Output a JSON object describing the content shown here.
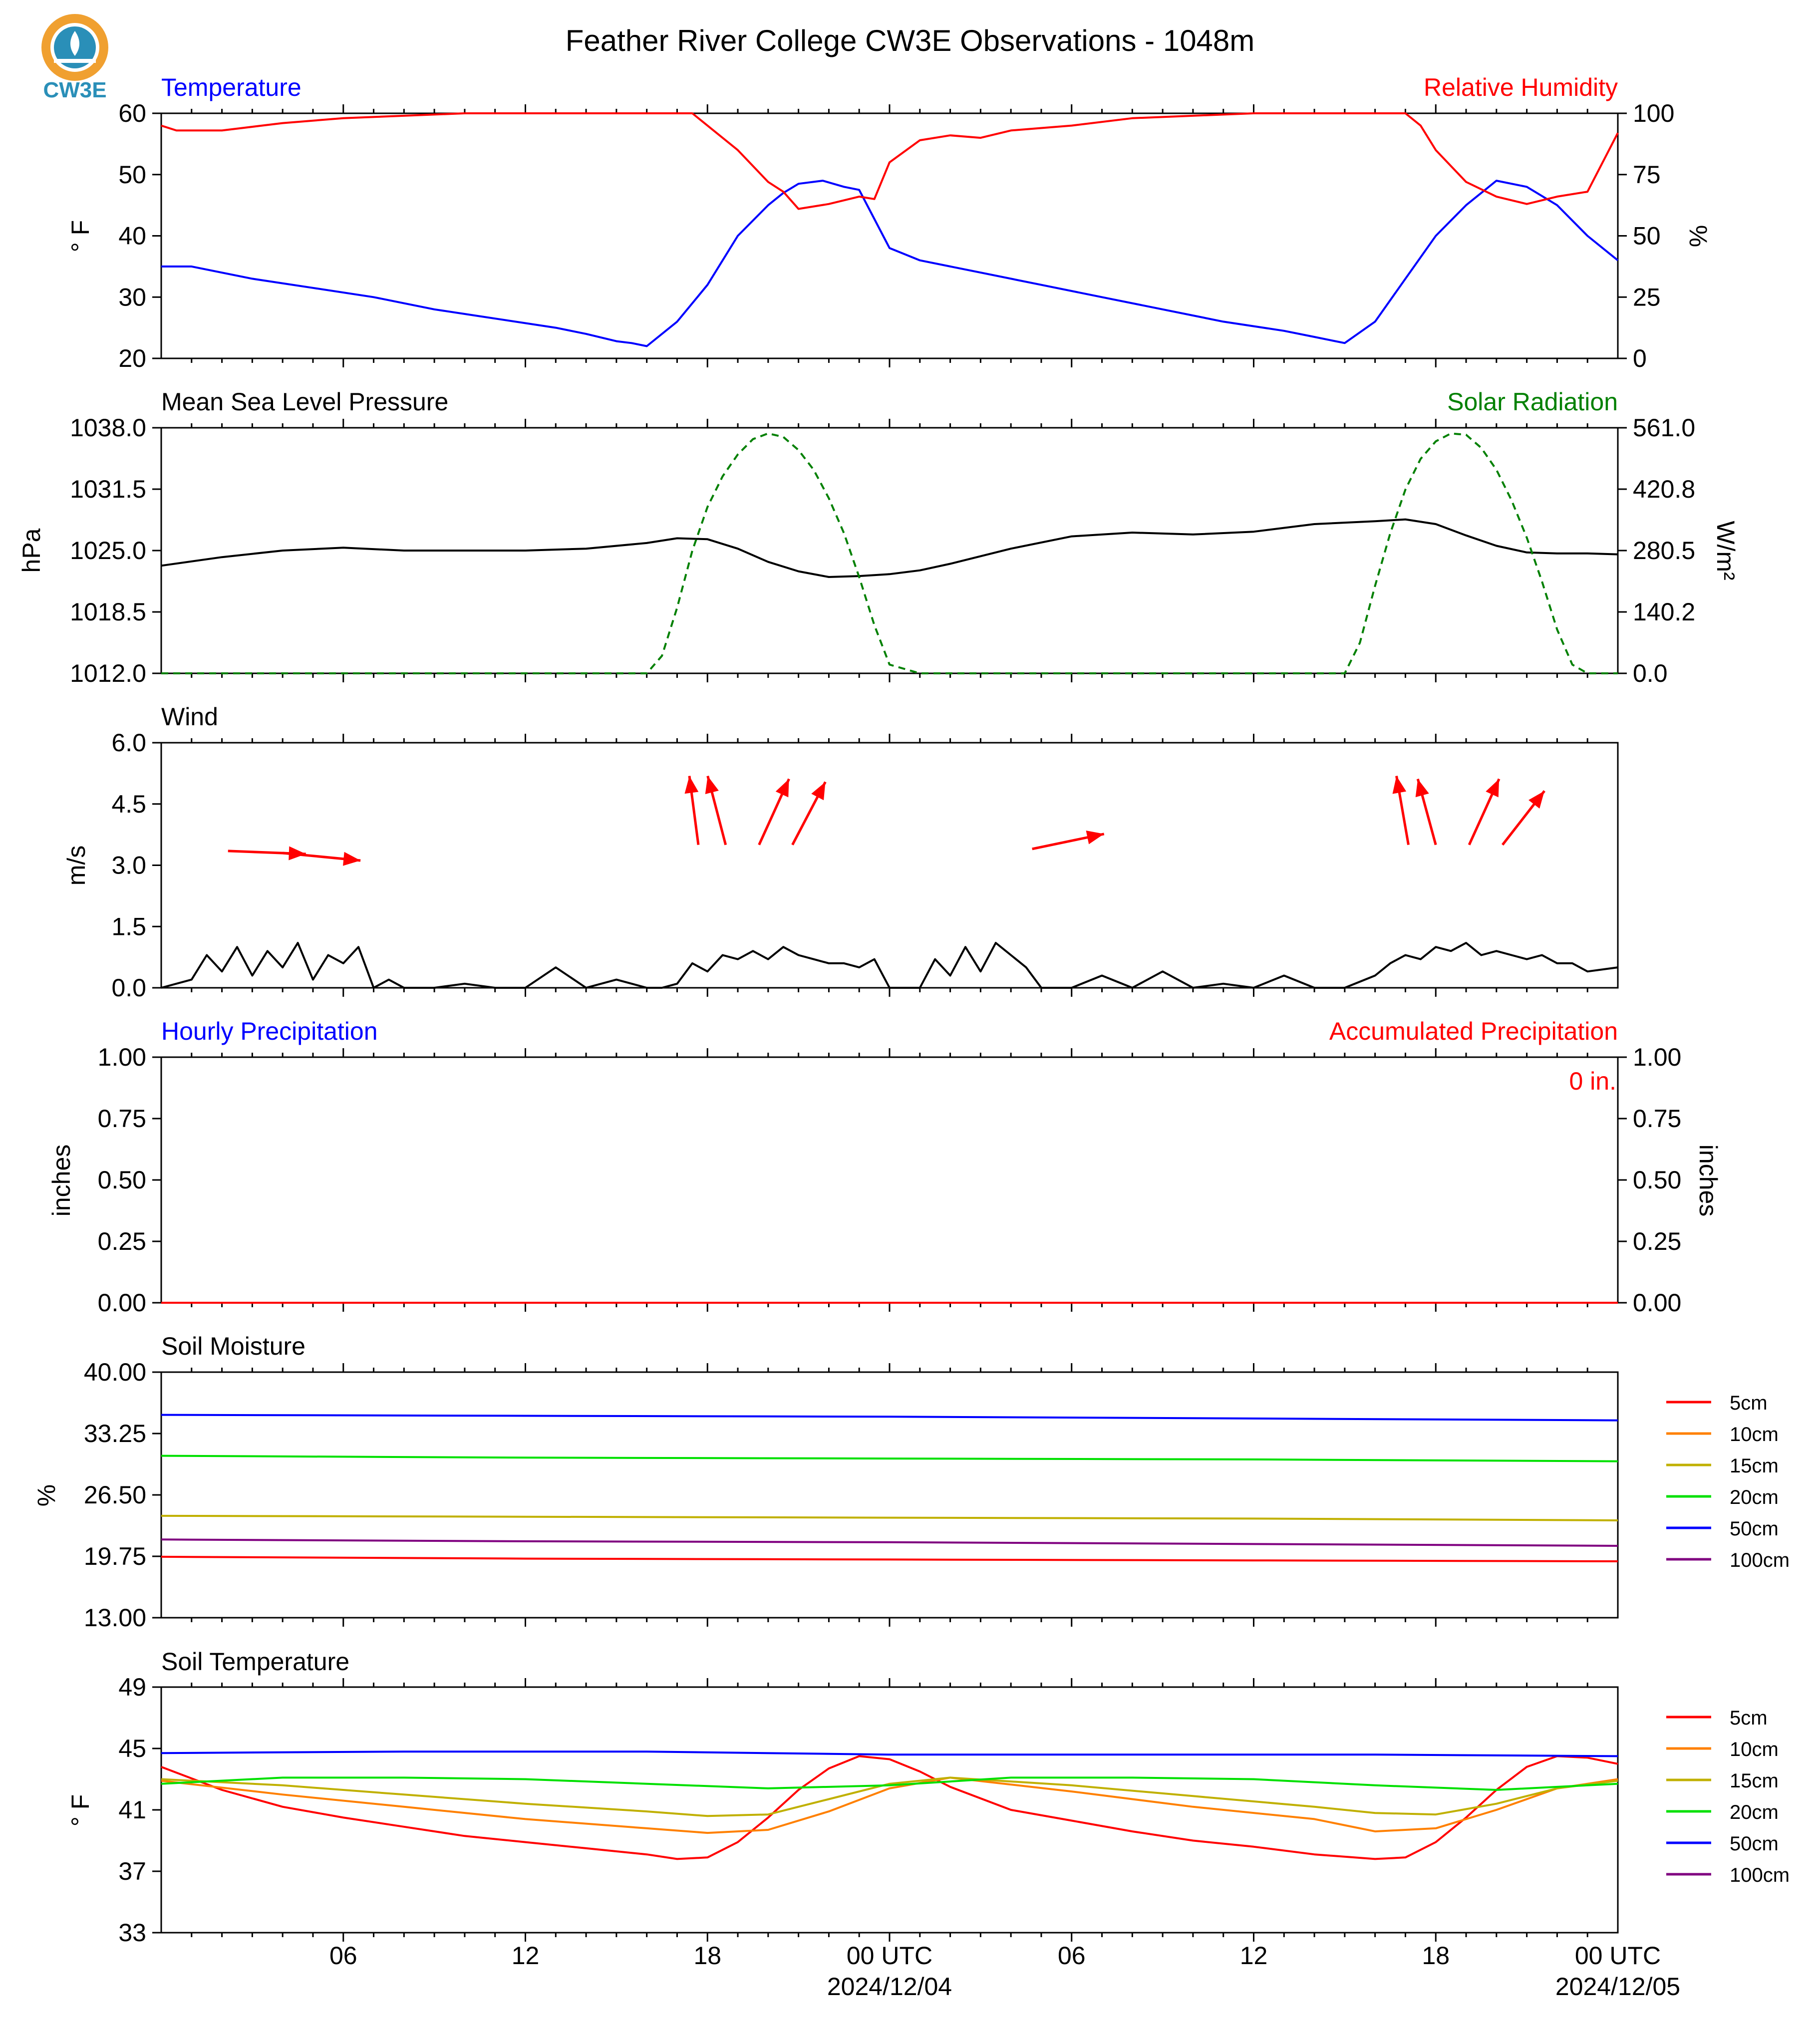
{
  "title": "Feather River College CW3E Observations - 1048m",
  "logo_text": "CW3E",
  "colors": {
    "temperature": "#0000ff",
    "humidity": "#ff0000",
    "pressure": "#000000",
    "solar": "#008000",
    "wind_arrow": "#ff0000",
    "wind_speed": "#000000",
    "logo_orange": "#f0a030",
    "logo_blue": "#2a8fb8"
  },
  "x_axis": {
    "ticks": [
      "06",
      "12",
      "18",
      "00 UTC",
      "06",
      "12",
      "18",
      "00 UTC"
    ],
    "dates": [
      "2024/12/04",
      "2024/12/05"
    ]
  },
  "chart_data": [
    {
      "type": "line",
      "title_left": "Temperature",
      "title_right": "Relative Humidity",
      "ylabel": "° F",
      "ylabel_right": "%",
      "ylim": [
        20,
        60
      ],
      "ylim_right": [
        0,
        100
      ],
      "yticks": [
        "60",
        "50",
        "40",
        "30",
        "20"
      ],
      "yticks_right": [
        "100",
        "75",
        "50",
        "25",
        "0"
      ],
      "x_unit": "hours",
      "xlim": [
        0,
        48
      ],
      "series": [
        {
          "name": "Temperature",
          "x": [
            0,
            1,
            3,
            5,
            7,
            9,
            11,
            13,
            14,
            15,
            15.5,
            16,
            17,
            18,
            19,
            20,
            20.5,
            21,
            21.8,
            22.5,
            23,
            24,
            25,
            27,
            29,
            31,
            33,
            35,
            37,
            38,
            38.5,
            39,
            40,
            41,
            42,
            43,
            43.5,
            44,
            45,
            46,
            47,
            48
          ],
          "y": [
            35,
            35,
            33,
            31.5,
            30,
            28,
            26.5,
            25,
            24,
            22.8,
            22.5,
            22,
            26,
            32,
            40,
            45,
            47,
            48.5,
            49,
            48,
            47.5,
            38,
            36,
            34,
            32,
            30,
            28,
            26,
            24.5,
            23.5,
            23,
            22.5,
            26,
            33,
            40,
            45,
            47,
            49,
            48,
            45,
            40,
            36
          ]
        },
        {
          "name": "Relative Humidity",
          "x": [
            0,
            0.5,
            2,
            4,
            6,
            8,
            10,
            12,
            14,
            16,
            17,
            17.5,
            18,
            19,
            20,
            20.5,
            21,
            22,
            23,
            23.5,
            24,
            25,
            26,
            27,
            28,
            30,
            32,
            34,
            36,
            38,
            40,
            41,
            41.5,
            42,
            43,
            44,
            45,
            46,
            47,
            48
          ],
          "y": [
            95,
            93,
            93,
            96,
            98,
            99,
            100,
            100,
            100,
            100,
            100,
            100,
            95,
            85,
            72,
            68,
            61,
            63,
            66,
            65,
            80,
            89,
            91,
            90,
            93,
            95,
            98,
            99,
            100,
            100,
            100,
            100,
            95,
            85,
            72,
            66,
            63,
            66,
            68,
            92
          ]
        }
      ]
    },
    {
      "type": "line",
      "title_left": "Mean Sea Level Pressure",
      "title_right": "Solar Radiation",
      "ylabel": "hPa",
      "ylabel_right": "W/m²",
      "ylim": [
        1012,
        1038
      ],
      "ylim_right": [
        0,
        561
      ],
      "yticks": [
        "1038.0",
        "1031.5",
        "1025.0",
        "1018.5",
        "1012.0"
      ],
      "yticks_right": [
        "561.0",
        "420.8",
        "280.5",
        "140.2",
        "0.0"
      ],
      "x_unit": "hours",
      "xlim": [
        0,
        48
      ],
      "series": [
        {
          "name": "Mean Sea Level Pressure",
          "x": [
            0,
            2,
            4,
            6,
            8,
            10,
            12,
            14,
            16,
            17,
            18,
            19,
            20,
            21,
            22,
            23,
            24,
            25,
            26,
            28,
            30,
            32,
            34,
            36,
            38,
            40,
            41,
            42,
            43,
            44,
            45,
            46,
            47,
            48
          ],
          "y": [
            1023.4,
            1024.3,
            1025.0,
            1025.3,
            1025.0,
            1025.0,
            1025.0,
            1025.2,
            1025.8,
            1026.3,
            1026.2,
            1025.2,
            1023.8,
            1022.8,
            1022.2,
            1022.3,
            1022.5,
            1022.9,
            1023.6,
            1025.2,
            1026.5,
            1026.9,
            1026.7,
            1027.0,
            1027.8,
            1028.1,
            1028.3,
            1027.8,
            1026.6,
            1025.5,
            1024.8,
            1024.7,
            1024.7,
            1024.6
          ]
        },
        {
          "name": "Solar Radiation",
          "x": [
            0,
            15.5,
            16,
            16.5,
            17,
            17.5,
            18,
            18.5,
            19,
            19.5,
            20,
            20.5,
            21,
            21.5,
            22,
            22.5,
            23,
            23.5,
            24,
            25,
            38.5,
            39,
            39.5,
            40,
            40.5,
            41,
            41.5,
            42,
            42.5,
            43,
            43.5,
            44,
            44.5,
            45,
            45.5,
            46,
            46.5,
            47,
            48
          ],
          "y": [
            0,
            0,
            0,
            40,
            150,
            280,
            380,
            450,
            500,
            535,
            548,
            540,
            510,
            465,
            400,
            320,
            220,
            110,
            20,
            0,
            0,
            0,
            70,
            200,
            320,
            420,
            490,
            530,
            548,
            545,
            515,
            465,
            395,
            310,
            210,
            100,
            20,
            0,
            0
          ]
        }
      ]
    },
    {
      "type": "line",
      "title_left": "Wind",
      "title_right": "",
      "ylabel": "m/s",
      "ylim": [
        0,
        6
      ],
      "yticks": [
        "6.0",
        "4.5",
        "3.0",
        "1.5",
        "0.0"
      ],
      "x_unit": "hours",
      "xlim": [
        0,
        48
      ],
      "series": [
        {
          "name": "Wind Speed",
          "x": [
            0,
            1,
            1.5,
            2,
            2.5,
            3,
            3.5,
            4,
            4.5,
            5,
            5.5,
            6,
            6.5,
            7,
            7.5,
            8,
            9,
            10,
            11,
            12,
            13,
            14,
            15,
            16,
            16.5,
            17,
            17.5,
            18,
            18.5,
            19,
            19.5,
            20,
            20.5,
            21,
            21.5,
            22,
            22.5,
            23,
            23.5,
            24,
            25,
            25.5,
            26,
            26.5,
            27,
            27.5,
            28,
            28.5,
            29,
            30,
            31,
            32,
            33,
            34,
            35,
            36,
            37,
            38,
            39,
            40,
            40.5,
            41,
            41.5,
            42,
            42.5,
            43,
            43.5,
            44,
            44.5,
            45,
            45.5,
            46,
            46.5,
            47,
            48
          ],
          "y": [
            0,
            0.2,
            0.8,
            0.4,
            1.0,
            0.3,
            0.9,
            0.5,
            1.1,
            0.2,
            0.8,
            0.6,
            1.0,
            0,
            0.2,
            0,
            0,
            0.1,
            0,
            0,
            0.5,
            0,
            0.2,
            0,
            0,
            0.1,
            0.6,
            0.4,
            0.8,
            0.7,
            0.9,
            0.7,
            1.0,
            0.8,
            0.7,
            0.6,
            0.6,
            0.5,
            0.7,
            0,
            0,
            0.7,
            0.3,
            1.0,
            0.4,
            1.1,
            0.8,
            0.5,
            0,
            0,
            0.3,
            0,
            0.4,
            0,
            0.1,
            0,
            0.3,
            0,
            0,
            0.3,
            0.6,
            0.8,
            0.7,
            1.0,
            0.9,
            1.1,
            0.8,
            0.9,
            0.8,
            0.7,
            0.8,
            0.6,
            0.6,
            0.4,
            0.5
          ]
        }
      ],
      "wind_arrows": [
        {
          "x": 2.2,
          "y": 3.35,
          "u": 2.6,
          "v": -0.1
        },
        {
          "x": 4.0,
          "y": 3.3,
          "u": 2.6,
          "v": -0.25
        },
        {
          "x": 17.7,
          "y": 3.5,
          "u": -0.3,
          "v": 2.3
        },
        {
          "x": 18.6,
          "y": 3.5,
          "u": -0.6,
          "v": 2.3
        },
        {
          "x": 19.7,
          "y": 3.5,
          "u": 1.0,
          "v": 2.2
        },
        {
          "x": 20.8,
          "y": 3.5,
          "u": 1.1,
          "v": 2.1
        },
        {
          "x": 28.7,
          "y": 3.4,
          "u": 2.4,
          "v": 0.5
        },
        {
          "x": 41.1,
          "y": 3.5,
          "u": -0.4,
          "v": 2.3
        },
        {
          "x": 42.0,
          "y": 3.5,
          "u": -0.6,
          "v": 2.2
        },
        {
          "x": 43.1,
          "y": 3.5,
          "u": 1.0,
          "v": 2.2
        },
        {
          "x": 44.2,
          "y": 3.5,
          "u": 1.4,
          "v": 1.8
        }
      ]
    },
    {
      "type": "bar",
      "title_left": "Hourly Precipitation",
      "title_right": "Accumulated Precipitation",
      "ylabel": "inches",
      "ylabel_right": "inches",
      "ylim": [
        0,
        1
      ],
      "ylim_right": [
        0,
        1
      ],
      "yticks": [
        "1.00",
        "0.75",
        "0.50",
        "0.25",
        "0.00"
      ],
      "yticks_right": [
        "1.00",
        "0.75",
        "0.50",
        "0.25",
        "0.00"
      ],
      "annotation": "0 in.",
      "x_unit": "hours",
      "xlim": [
        0,
        48
      ],
      "series": [
        {
          "name": "Hourly Precipitation",
          "x": [
            0,
            48
          ],
          "y": [
            0,
            0
          ]
        },
        {
          "name": "Accumulated Precipitation",
          "x": [
            0,
            48
          ],
          "y": [
            0,
            0
          ]
        }
      ]
    },
    {
      "type": "line",
      "title_left": "Soil Moisture",
      "title_right": "",
      "ylabel": "%",
      "ylim": [
        13,
        40
      ],
      "yticks": [
        "40.00",
        "33.25",
        "26.50",
        "19.75",
        "13.00"
      ],
      "x_unit": "hours",
      "xlim": [
        0,
        48
      ],
      "legend": "right",
      "series": [
        {
          "name": "5cm",
          "color": "#ff0000",
          "x": [
            0,
            12,
            24,
            36,
            48
          ],
          "y": [
            19.7,
            19.5,
            19.4,
            19.3,
            19.2
          ]
        },
        {
          "name": "10cm",
          "color": "#ff8000",
          "x": [
            0,
            48
          ],
          "y": [
            null,
            null
          ]
        },
        {
          "name": "15cm",
          "color": "#c0b000",
          "x": [
            0,
            12,
            24,
            36,
            48
          ],
          "y": [
            24.2,
            24.1,
            24.0,
            23.9,
            23.7
          ]
        },
        {
          "name": "20cm",
          "color": "#00e000",
          "x": [
            0,
            12,
            24,
            36,
            48
          ],
          "y": [
            30.8,
            30.6,
            30.5,
            30.4,
            30.2
          ]
        },
        {
          "name": "50cm",
          "color": "#0000ff",
          "x": [
            0,
            12,
            24,
            36,
            48
          ],
          "y": [
            35.3,
            35.2,
            35.1,
            34.9,
            34.7
          ]
        },
        {
          "name": "100cm",
          "color": "#800080",
          "x": [
            0,
            12,
            24,
            36,
            48
          ],
          "y": [
            21.6,
            21.4,
            21.3,
            21.1,
            20.9
          ]
        }
      ]
    },
    {
      "type": "line",
      "title_left": "Soil Temperature",
      "title_right": "",
      "ylabel": "° F",
      "ylim": [
        33,
        49
      ],
      "yticks": [
        "49",
        "45",
        "41",
        "37",
        "33"
      ],
      "x_unit": "hours",
      "xlim": [
        0,
        48
      ],
      "legend": "right",
      "series": [
        {
          "name": "5cm",
          "color": "#ff0000",
          "x": [
            0,
            2,
            4,
            6,
            8,
            10,
            12,
            14,
            16,
            17,
            18,
            19,
            20,
            21,
            22,
            23,
            24,
            25,
            26,
            28,
            30,
            32,
            34,
            36,
            38,
            40,
            41,
            42,
            43,
            44,
            45,
            46,
            47,
            48
          ],
          "y": [
            43.8,
            42.3,
            41.2,
            40.5,
            39.9,
            39.3,
            38.9,
            38.5,
            38.1,
            37.8,
            37.9,
            38.9,
            40.5,
            42.3,
            43.7,
            44.5,
            44.3,
            43.5,
            42.5,
            41.0,
            40.3,
            39.6,
            39.0,
            38.6,
            38.1,
            37.8,
            37.9,
            38.9,
            40.5,
            42.3,
            43.8,
            44.5,
            44.4,
            44.0
          ]
        },
        {
          "name": "10cm",
          "color": "#ff8000",
          "x": [
            0,
            4,
            8,
            12,
            16,
            18,
            20,
            22,
            24,
            26,
            30,
            34,
            38,
            40,
            42,
            44,
            46,
            48
          ],
          "y": [
            42.9,
            42.0,
            41.2,
            40.4,
            39.8,
            39.5,
            39.7,
            40.9,
            42.4,
            43.1,
            42.2,
            41.2,
            40.4,
            39.6,
            39.8,
            41.0,
            42.4,
            43.0
          ]
        },
        {
          "name": "15cm",
          "color": "#c0b000",
          "x": [
            0,
            4,
            8,
            12,
            16,
            18,
            20,
            22,
            24,
            26,
            30,
            34,
            38,
            40,
            42,
            44,
            46,
            48
          ],
          "y": [
            43.0,
            42.6,
            42.0,
            41.4,
            40.9,
            40.6,
            40.7,
            41.7,
            42.7,
            43.1,
            42.6,
            41.9,
            41.2,
            40.8,
            40.7,
            41.4,
            42.4,
            42.9
          ]
        },
        {
          "name": "20cm",
          "color": "#00e000",
          "x": [
            0,
            4,
            8,
            12,
            16,
            20,
            24,
            28,
            32,
            36,
            40,
            44,
            48
          ],
          "y": [
            42.7,
            43.1,
            43.1,
            43.0,
            42.7,
            42.4,
            42.6,
            43.1,
            43.1,
            43.0,
            42.6,
            42.3,
            42.7
          ]
        },
        {
          "name": "50cm",
          "color": "#0000ff",
          "x": [
            0,
            8,
            16,
            24,
            32,
            40,
            48
          ],
          "y": [
            44.7,
            44.8,
            44.8,
            44.6,
            44.6,
            44.6,
            44.5
          ]
        },
        {
          "name": "100cm",
          "color": "#800080",
          "x": [
            0,
            48
          ],
          "y": [
            null,
            null
          ]
        }
      ]
    }
  ]
}
